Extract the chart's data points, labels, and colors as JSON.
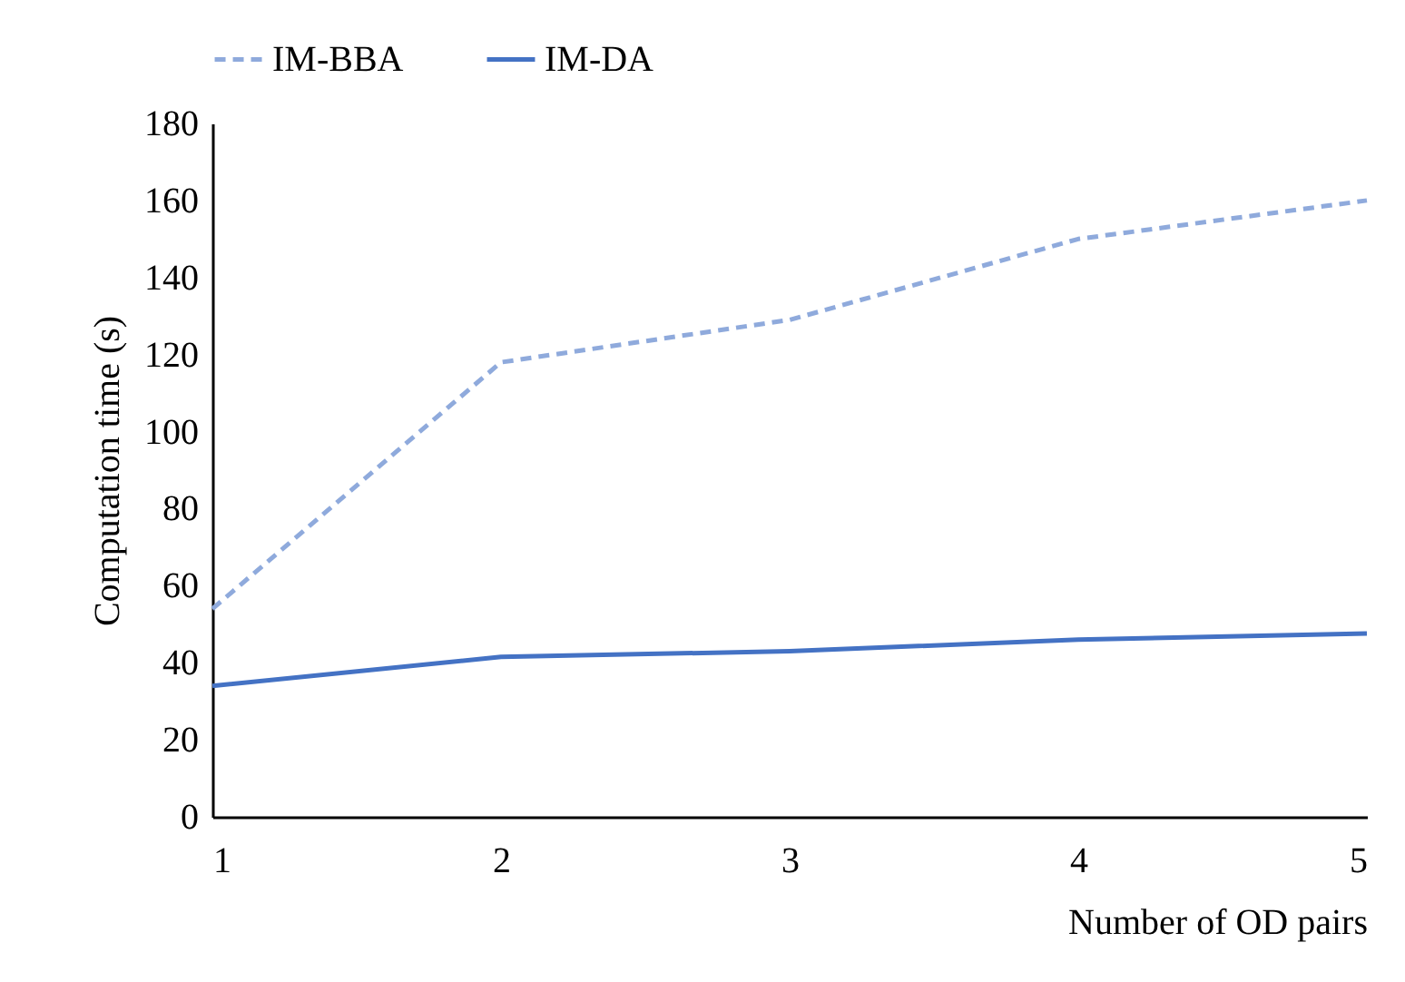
{
  "chart_data": {
    "type": "line",
    "xlabel": "Number of OD pairs",
    "ylabel": "Computation time (s)",
    "x": [
      1,
      2,
      3,
      4,
      5
    ],
    "xlim": [
      1,
      5
    ],
    "xticks": [
      1,
      2,
      3,
      4,
      5
    ],
    "ylim": [
      0,
      180
    ],
    "yticks": [
      0,
      20,
      40,
      60,
      80,
      100,
      120,
      140,
      160,
      180
    ],
    "grid": false,
    "legend": "top",
    "marker": "none",
    "series": [
      {
        "name": "IM-BBA",
        "color": "#8faadc",
        "line_style": "dashed",
        "values": [
          54,
          118,
          129,
          150,
          160
        ]
      },
      {
        "name": "IM-DA",
        "color": "#4472c4",
        "line_style": "solid",
        "values": [
          34,
          41.5,
          43,
          46,
          47.6
        ]
      }
    ]
  }
}
